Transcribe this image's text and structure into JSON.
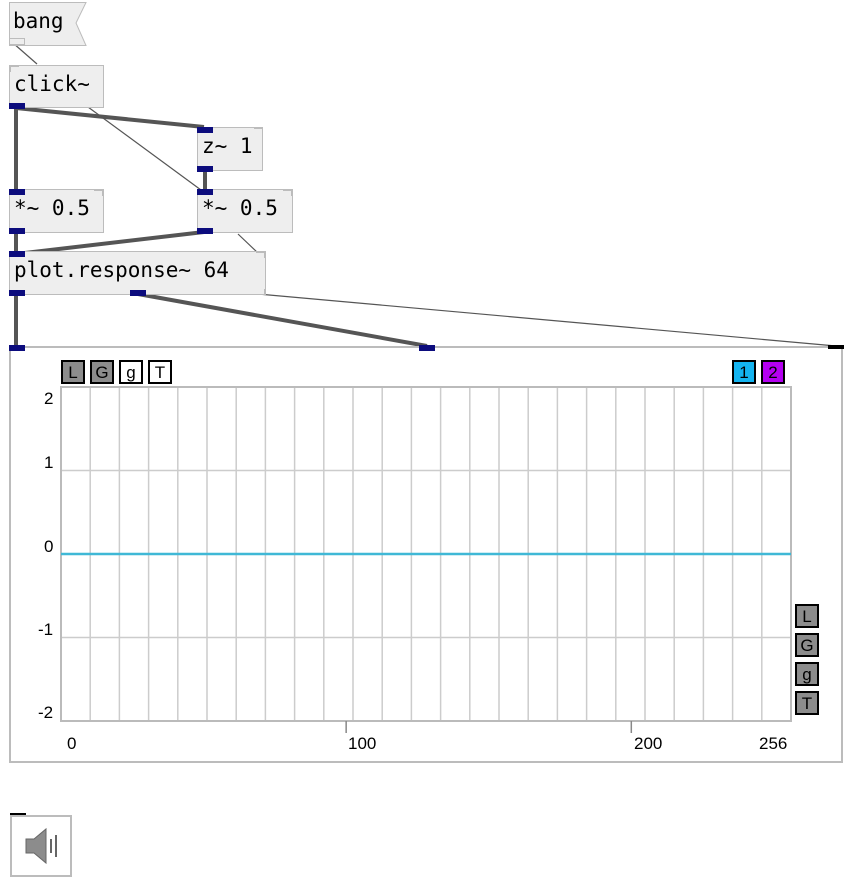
{
  "objects": {
    "bang": "bang",
    "click": "click~",
    "z": "z~ 1",
    "mul_left": "*~ 0.5",
    "mul_right": "*~ 0.5",
    "plot": "plot.response~ 64"
  },
  "plot_toolbar": {
    "top_left": [
      "L",
      "G",
      "g",
      "T"
    ],
    "top_left_state": [
      true,
      true,
      false,
      false
    ],
    "channels": [
      "1",
      "2"
    ],
    "right_side": [
      "L",
      "G",
      "g",
      "T"
    ]
  },
  "colors": {
    "channel_1": "#14b4f0",
    "channel_2": "#b400f0",
    "signal_line": "#3fb8d6",
    "port": "#0c0c7d",
    "grid": "#cccccc",
    "toggle_on": "#8c8c8c"
  },
  "chart_data": {
    "type": "line",
    "x_tick_labels": [
      "0",
      "100",
      "200",
      "256"
    ],
    "y_tick_labels": [
      "2",
      "1",
      "0",
      "-1",
      "-2"
    ],
    "xlim": [
      0,
      256
    ],
    "ylim": [
      -2,
      2
    ],
    "grid": true,
    "series": [
      {
        "x": [
          0,
          256
        ],
        "y": [
          0,
          0
        ]
      }
    ]
  },
  "speaker_icon": "speaker-icon"
}
